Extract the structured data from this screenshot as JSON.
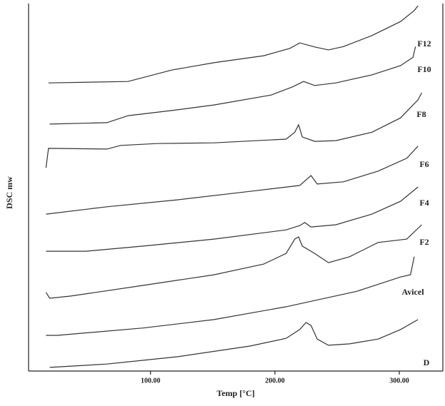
{
  "chart_data": {
    "type": "line",
    "xlabel": "Temp [°C]",
    "ylabel": "DSC mw",
    "xlim": [
      2,
      335
    ],
    "ylim": [
      0,
      100
    ],
    "xticks": [
      {
        "value": 100,
        "label": "100.00"
      },
      {
        "value": 200,
        "label": "200.00"
      },
      {
        "value": 300,
        "label": "300.00"
      }
    ],
    "color": "#333333",
    "series": [
      {
        "name": "F12",
        "x": [
          18,
          82,
          117,
          151,
          191,
          212,
          220,
          232,
          243,
          255,
          278,
          301,
          312,
          315
        ],
        "values": [
          78.4,
          78.8,
          81.9,
          83.9,
          85.8,
          87.8,
          89.3,
          88.2,
          87.4,
          88.3,
          91.3,
          95.1,
          98.1,
          99.4
        ]
      },
      {
        "name": "F10",
        "x": [
          19,
          65,
          82,
          117,
          151,
          197,
          214,
          223,
          232,
          249,
          278,
          301,
          311,
          313
        ],
        "values": [
          67.2,
          67.6,
          69.5,
          70.9,
          72.4,
          75.1,
          77.3,
          78.8,
          77.7,
          78.4,
          80.6,
          83.1,
          85.4,
          88.3
        ]
      },
      {
        "name": "F8",
        "x": [
          16,
          18,
          65,
          76,
          105,
          151,
          209,
          216,
          219,
          222,
          232,
          249,
          278,
          301,
          315,
          318
        ],
        "values": [
          55.3,
          60.6,
          60.4,
          61.4,
          61.9,
          62.1,
          63.1,
          65.0,
          67.0,
          63.7,
          62.5,
          62.7,
          65.0,
          68.9,
          73.8,
          75.7
        ]
      },
      {
        "name": "F6",
        "x": [
          16,
          65,
          122,
          180,
          220,
          229,
          234,
          255,
          283,
          306,
          315
        ],
        "values": [
          42.7,
          44.7,
          46.6,
          48.9,
          50.5,
          53.2,
          50.9,
          51.5,
          54.4,
          57.9,
          61.2
        ]
      },
      {
        "name": "F4",
        "x": [
          16,
          48,
          94,
          151,
          209,
          220,
          224,
          229,
          249,
          278,
          301,
          315
        ],
        "values": [
          32.6,
          32.6,
          34.0,
          35.9,
          38.4,
          39.6,
          40.4,
          39.2,
          39.8,
          42.7,
          46.2,
          50.1
        ]
      },
      {
        "name": "F2",
        "x": [
          16,
          19,
          36,
          94,
          151,
          191,
          209,
          216,
          219,
          222,
          232,
          243,
          260,
          283,
          306,
          318
        ],
        "values": [
          21.4,
          19.8,
          20.4,
          23.3,
          26.2,
          29.1,
          32.0,
          35.9,
          36.5,
          34.0,
          32.0,
          29.5,
          31.1,
          35.0,
          35.9,
          39.8
        ]
      },
      {
        "name": "Avicel",
        "x": [
          16,
          25,
          94,
          151,
          209,
          266,
          301,
          309,
          312
        ],
        "values": [
          9.7,
          9.7,
          11.7,
          14.0,
          17.5,
          21.7,
          25.6,
          26.2,
          31.1
        ]
      },
      {
        "name": "D",
        "x": [
          19,
          65,
          122,
          180,
          209,
          220,
          225,
          229,
          234,
          243,
          260,
          283,
          301,
          315
        ],
        "values": [
          1.0,
          1.9,
          3.9,
          6.8,
          8.9,
          11.3,
          13.2,
          12.4,
          8.7,
          7.0,
          7.4,
          8.7,
          11.3,
          14.0
        ]
      }
    ]
  }
}
